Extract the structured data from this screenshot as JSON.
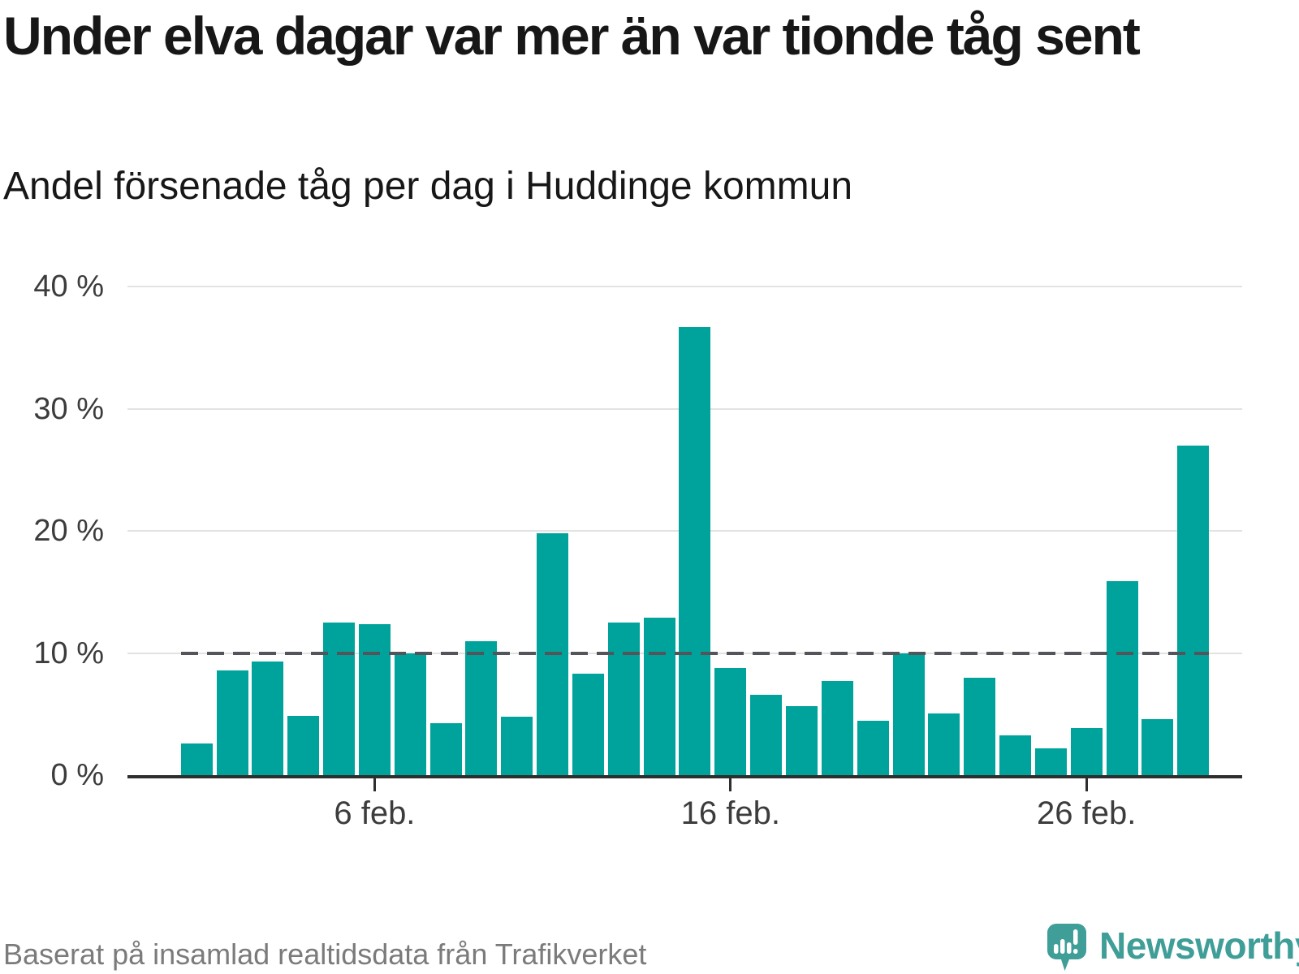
{
  "header": {
    "title": "Under elva dagar var mer än var tionde tåg sent",
    "subtitle": "Andel försenade tåg per dag i Huddinge kommun"
  },
  "chart_data": {
    "type": "bar",
    "title": "Under elva dagar var mer än var tionde tåg sent",
    "subtitle": "Andel försenade tåg per dag i Huddinge kommun",
    "unit": "%",
    "categories": [
      "1 feb.",
      "2 feb.",
      "3 feb.",
      "4 feb.",
      "5 feb.",
      "6 feb.",
      "7 feb.",
      "8 feb.",
      "9 feb.",
      "10 feb.",
      "11 feb.",
      "12 feb.",
      "13 feb.",
      "14 feb.",
      "15 feb.",
      "16 feb.",
      "17 feb.",
      "18 feb.",
      "19 feb.",
      "20 feb.",
      "21 feb.",
      "22 feb.",
      "23 feb.",
      "24 feb.",
      "25 feb.",
      "26 feb.",
      "27 feb.",
      "28 feb.",
      "29 feb."
    ],
    "values": [
      2.6,
      8.6,
      9.3,
      4.9,
      12.5,
      12.4,
      10.0,
      4.3,
      11.0,
      4.8,
      19.8,
      8.3,
      12.5,
      12.9,
      36.7,
      8.8,
      6.6,
      5.7,
      7.7,
      4.5,
      10.0,
      5.1,
      8.0,
      3.3,
      2.2,
      3.9,
      15.9,
      4.6,
      27.0
    ],
    "ylim": [
      0,
      40
    ],
    "yticks": [
      {
        "value": 0,
        "label": "0 %"
      },
      {
        "value": 10,
        "label": "10 %"
      },
      {
        "value": 20,
        "label": "20 %"
      },
      {
        "value": 30,
        "label": "30 %"
      },
      {
        "value": 40,
        "label": "40 %"
      }
    ],
    "xticks": [
      {
        "index": 5,
        "label": "6 feb."
      },
      {
        "index": 15,
        "label": "16 feb."
      },
      {
        "index": 25,
        "label": "26 feb."
      }
    ],
    "reference_line": {
      "value": 10,
      "style": "dashed"
    },
    "grid": "horizontal",
    "legend": "none"
  },
  "footer": {
    "source": "Baserat på insamlad realtidsdata från Trafikverket",
    "brand_name": "Newsworthy"
  },
  "colors": {
    "bar": "#00a39b",
    "reference_line": "#53555a",
    "gridline": "#e2e2e2",
    "axis": "#2e2e2e",
    "title_text": "#171717",
    "axis_label": "#3c3c3c",
    "footer_text": "#7b7b7b",
    "brand_teal": "#3f9e97"
  }
}
